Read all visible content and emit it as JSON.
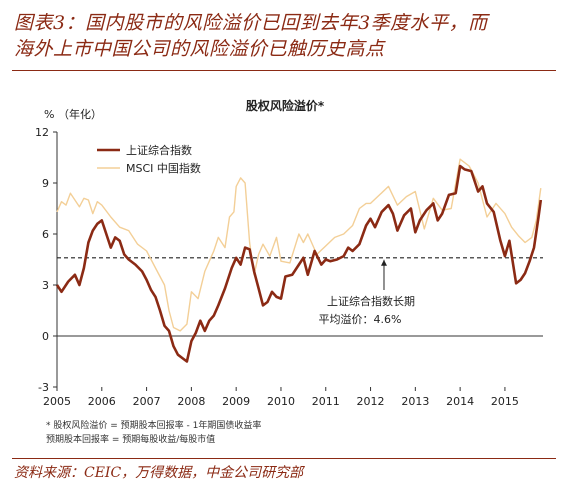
{
  "figure": {
    "title_line1": "图表3：国内股市的风险溢价已回到去年3季度水平，而",
    "title_line2": "海外上市中国公司的风险溢价已触历史高点",
    "source": "资料来源：CEIC，万得数据，中金公司研究部",
    "note_line1": "* 股权风险溢价 = 预期股本回报率 - 1年期国债收益率",
    "note_line2": "预期股本回报率 = 预期每股收益/每股市值"
  },
  "chart_data": {
    "type": "line",
    "title": "股权风险溢价*",
    "ylabel": "%  （年化）",
    "ylim": [
      -3,
      12
    ],
    "yticks": [
      -3,
      0,
      3,
      6,
      9,
      12
    ],
    "xlim": [
      2005,
      2015.85
    ],
    "xticks": [
      "2005",
      "2006",
      "2007",
      "2008",
      "2009",
      "2010",
      "2011",
      "2012",
      "2013",
      "2014",
      "2015"
    ],
    "legend_position": "top-left",
    "reference_line": {
      "value": 4.6,
      "style": "dashed",
      "color": "#222222"
    },
    "annotation": {
      "line1": "上证综合指数长期",
      "line2": "平均溢价：4.6%",
      "x": 2012.3
    },
    "series": [
      {
        "name": "上证综合指数",
        "color": "#8b2a14",
        "x": [
          2005.0,
          2005.1,
          2005.25,
          2005.4,
          2005.5,
          2005.6,
          2005.7,
          2005.8,
          2005.9,
          2006.0,
          2006.1,
          2006.2,
          2006.3,
          2006.4,
          2006.5,
          2006.6,
          2006.75,
          2006.9,
          2007.0,
          2007.1,
          2007.2,
          2007.3,
          2007.4,
          2007.5,
          2007.6,
          2007.7,
          2007.8,
          2007.9,
          2008.0,
          2008.1,
          2008.2,
          2008.3,
          2008.4,
          2008.5,
          2008.6,
          2008.75,
          2008.9,
          2009.0,
          2009.1,
          2009.2,
          2009.3,
          2009.4,
          2009.5,
          2009.6,
          2009.7,
          2009.8,
          2009.9,
          2010.0,
          2010.1,
          2010.25,
          2010.4,
          2010.5,
          2010.6,
          2010.75,
          2010.9,
          2011.0,
          2011.1,
          2011.25,
          2011.4,
          2011.5,
          2011.6,
          2011.75,
          2011.9,
          2012.0,
          2012.1,
          2012.25,
          2012.4,
          2012.5,
          2012.6,
          2012.75,
          2012.9,
          2013.0,
          2013.1,
          2013.25,
          2013.4,
          2013.5,
          2013.6,
          2013.75,
          2013.9,
          2014.0,
          2014.1,
          2014.25,
          2014.4,
          2014.5,
          2014.6,
          2014.75,
          2014.9,
          2015.0,
          2015.1,
          2015.25,
          2015.35,
          2015.45,
          2015.55,
          2015.65,
          2015.75,
          2015.8
        ],
        "values": [
          3.0,
          2.6,
          3.2,
          3.6,
          3.0,
          4.0,
          5.5,
          6.2,
          6.6,
          6.8,
          6.0,
          5.2,
          5.8,
          5.6,
          4.8,
          4.5,
          4.2,
          3.8,
          3.3,
          2.7,
          2.3,
          1.5,
          0.6,
          0.3,
          -0.6,
          -1.1,
          -1.3,
          -1.5,
          -0.3,
          0.2,
          0.9,
          0.3,
          0.9,
          1.2,
          1.8,
          2.8,
          4.0,
          4.6,
          4.2,
          5.2,
          5.1,
          3.8,
          2.8,
          1.8,
          2.0,
          2.6,
          2.3,
          2.2,
          3.5,
          3.6,
          4.2,
          4.6,
          3.6,
          5.0,
          4.2,
          4.5,
          4.4,
          4.5,
          4.7,
          5.2,
          5.0,
          5.4,
          6.5,
          6.9,
          6.4,
          7.3,
          7.7,
          7.2,
          6.2,
          7.1,
          7.5,
          6.1,
          6.8,
          7.4,
          7.8,
          6.8,
          7.2,
          8.3,
          8.4,
          10.0,
          9.8,
          9.7,
          8.5,
          8.8,
          7.8,
          7.3,
          5.6,
          4.7,
          5.6,
          3.1,
          3.3,
          3.7,
          4.4,
          5.2,
          7.0,
          8.0
        ]
      },
      {
        "name": "MSCI 中国指数",
        "color": "#f3cf97",
        "x": [
          2005.0,
          2005.1,
          2005.2,
          2005.3,
          2005.4,
          2005.5,
          2005.6,
          2005.7,
          2005.8,
          2005.9,
          2006.0,
          2006.2,
          2006.4,
          2006.6,
          2006.8,
          2007.0,
          2007.2,
          2007.4,
          2007.5,
          2007.6,
          2007.75,
          2007.9,
          2008.0,
          2008.15,
          2008.3,
          2008.4,
          2008.5,
          2008.6,
          2008.75,
          2008.85,
          2008.95,
          2009.0,
          2009.1,
          2009.2,
          2009.3,
          2009.4,
          2009.5,
          2009.6,
          2009.75,
          2009.9,
          2010.0,
          2010.2,
          2010.4,
          2010.5,
          2010.6,
          2010.8,
          2011.0,
          2011.2,
          2011.4,
          2011.6,
          2011.75,
          2011.9,
          2012.0,
          2012.2,
          2012.4,
          2012.6,
          2012.8,
          2013.0,
          2013.2,
          2013.4,
          2013.6,
          2013.8,
          2014.0,
          2014.2,
          2014.4,
          2014.6,
          2014.8,
          2015.0,
          2015.15,
          2015.3,
          2015.45,
          2015.6,
          2015.7,
          2015.8
        ],
        "values": [
          7.3,
          7.9,
          7.7,
          8.4,
          8.0,
          7.6,
          8.1,
          8.0,
          7.2,
          7.9,
          7.7,
          7.0,
          6.4,
          6.2,
          5.4,
          5.0,
          4.0,
          3.0,
          1.5,
          0.5,
          0.3,
          0.7,
          2.6,
          2.2,
          3.8,
          4.4,
          5.0,
          5.8,
          5.2,
          7.0,
          7.3,
          8.8,
          9.3,
          9.0,
          5.5,
          3.6,
          4.8,
          5.4,
          4.7,
          5.8,
          4.4,
          4.3,
          6.0,
          5.5,
          6.0,
          4.8,
          5.3,
          5.8,
          6.0,
          6.5,
          7.5,
          7.8,
          7.8,
          8.3,
          8.8,
          7.7,
          8.2,
          8.5,
          6.3,
          8.1,
          7.4,
          7.5,
          10.4,
          10.0,
          9.0,
          7.0,
          7.8,
          7.2,
          6.4,
          5.9,
          5.5,
          5.8,
          6.8,
          8.7
        ]
      }
    ]
  }
}
